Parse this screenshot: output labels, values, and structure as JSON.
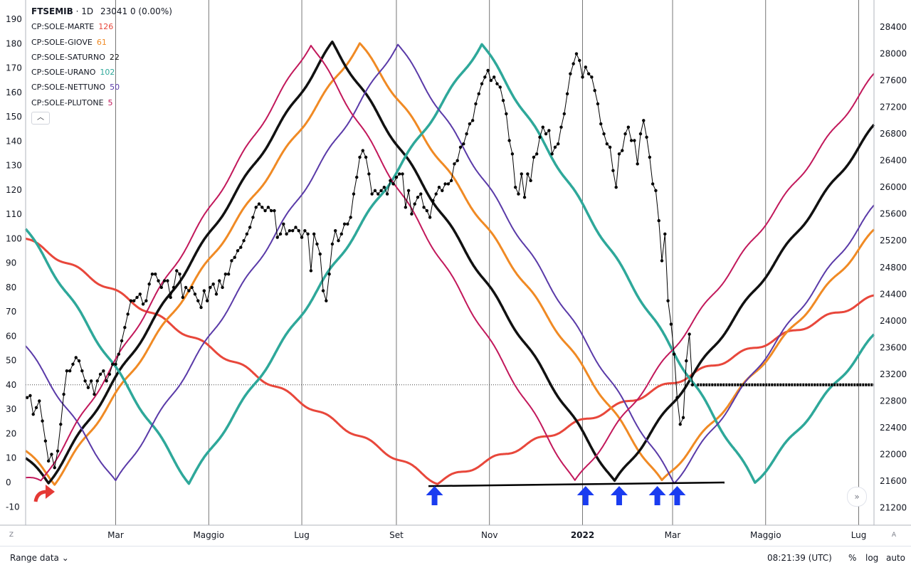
{
  "header": {
    "symbol": "FTSEMIB",
    "interval": "1D",
    "price": "23041",
    "change": "0 (0.00%)"
  },
  "legend": [
    {
      "name": "CP:SOLE-MARTE",
      "value": "126",
      "color": "#e8473b"
    },
    {
      "name": "CP:SOLE-GIOVE",
      "value": "61",
      "color": "#f08a24"
    },
    {
      "name": "CP:SOLE-SATURNO",
      "value": "22",
      "color": "#111111"
    },
    {
      "name": "CP:SOLE-URANO",
      "value": "102",
      "color": "#2ea89a"
    },
    {
      "name": "CP:SOLE-NETTUNO",
      "value": "50",
      "color": "#5a3aa8"
    },
    {
      "name": "CP:SOLE-PLUTONE",
      "value": "5",
      "color": "#c2185b"
    }
  ],
  "collapse_icon": "chevron-up-icon",
  "chart_data": {
    "type": "line",
    "left_axis": {
      "ticks": [
        190,
        180,
        170,
        160,
        150,
        140,
        130,
        120,
        110,
        100,
        90,
        80,
        70,
        60,
        50,
        40,
        30,
        20,
        10,
        0,
        -10
      ],
      "range": [
        -12,
        196
      ]
    },
    "right_axis": {
      "ticks": [
        28400,
        28000,
        27600,
        27200,
        26800,
        26400,
        26000,
        25600,
        25200,
        24800,
        24400,
        24000,
        23600,
        23200,
        22800,
        22400,
        22000,
        21600,
        21200
      ],
      "range": [
        21100,
        28600
      ]
    },
    "x_axis": {
      "labels": [
        "Mar",
        "Maggio",
        "Lug",
        "Set",
        "Nov",
        "2022",
        "Mar",
        "Maggio",
        "Lug"
      ],
      "bold_labels": [
        "2022"
      ],
      "label_days": [
        59,
        120,
        181,
        243,
        304,
        365,
        424,
        485,
        546
      ],
      "range_days": [
        0,
        556
      ],
      "gridlines": true
    },
    "hline": {
      "value": 23041,
      "style": "dotted"
    },
    "series": [
      {
        "name": "CP:SOLE-MARTE",
        "axis": "left",
        "color": "#e8473b",
        "width": 3,
        "points": [
          [
            0,
            100
          ],
          [
            270,
            0
          ],
          [
            556,
            76
          ]
        ]
      },
      {
        "name": "CP:SOLE-GIOVE",
        "axis": "left",
        "color": "#f08a24",
        "width": 3,
        "points": [
          [
            0,
            13
          ],
          [
            19,
            0
          ],
          [
            219,
            180
          ],
          [
            417,
            0
          ],
          [
            556,
            103
          ]
        ]
      },
      {
        "name": "CP:SOLE-SATURNO",
        "axis": "left",
        "color": "#111111",
        "width": 3.5,
        "points": [
          [
            0,
            10
          ],
          [
            15,
            0
          ],
          [
            201,
            180
          ],
          [
            386,
            0
          ],
          [
            556,
            146
          ]
        ]
      },
      {
        "name": "CP:SOLE-URANO",
        "axis": "left",
        "color": "#2ea89a",
        "width": 3.5,
        "points": [
          [
            0,
            104
          ],
          [
            107,
            0
          ],
          [
            299,
            180
          ],
          [
            478,
            0
          ],
          [
            556,
            60
          ]
        ]
      },
      {
        "name": "CP:SOLE-NETTUNO",
        "axis": "left",
        "color": "#5a3aa8",
        "width": 2,
        "points": [
          [
            0,
            56
          ],
          [
            59,
            0
          ],
          [
            244,
            180
          ],
          [
            425,
            0
          ],
          [
            556,
            113
          ]
        ]
      },
      {
        "name": "CP:SOLE-PLUTONE",
        "axis": "left",
        "color": "#c2185b",
        "width": 2,
        "points": [
          [
            0,
            2
          ],
          [
            10,
            0
          ],
          [
            187,
            180
          ],
          [
            360,
            0
          ],
          [
            556,
            167
          ]
        ]
      },
      {
        "name": "FTSEMIB",
        "axis": "right",
        "color": "#000000",
        "width": 1,
        "markers": true,
        "points": [
          [
            1,
            22850
          ],
          [
            3,
            22880
          ],
          [
            5,
            22600
          ],
          [
            7,
            22700
          ],
          [
            9,
            22800
          ],
          [
            11,
            22500
          ],
          [
            13,
            22200
          ],
          [
            15,
            21900
          ],
          [
            17,
            22000
          ],
          [
            19,
            21800
          ],
          [
            21,
            22050
          ],
          [
            23,
            22450
          ],
          [
            25,
            22900
          ],
          [
            27,
            23250
          ],
          [
            29,
            23250
          ],
          [
            31,
            23350
          ],
          [
            33,
            23450
          ],
          [
            35,
            23400
          ],
          [
            37,
            23250
          ],
          [
            39,
            23100
          ],
          [
            41,
            23000
          ],
          [
            43,
            23100
          ],
          [
            45,
            22900
          ],
          [
            47,
            23100
          ],
          [
            49,
            23200
          ],
          [
            51,
            23250
          ],
          [
            53,
            23100
          ],
          [
            55,
            23200
          ],
          [
            57,
            23350
          ],
          [
            59,
            23350
          ],
          [
            61,
            23500
          ],
          [
            63,
            23700
          ],
          [
            65,
            23900
          ],
          [
            67,
            24100
          ],
          [
            69,
            24300
          ],
          [
            71,
            24300
          ],
          [
            73,
            24350
          ],
          [
            75,
            24400
          ],
          [
            77,
            24250
          ],
          [
            79,
            24300
          ],
          [
            81,
            24550
          ],
          [
            83,
            24700
          ],
          [
            85,
            24700
          ],
          [
            87,
            24600
          ],
          [
            89,
            24500
          ],
          [
            91,
            24600
          ],
          [
            93,
            24600
          ],
          [
            95,
            24350
          ],
          [
            97,
            24500
          ],
          [
            99,
            24750
          ],
          [
            101,
            24700
          ],
          [
            103,
            24350
          ],
          [
            105,
            24500
          ],
          [
            107,
            24450
          ],
          [
            109,
            24500
          ],
          [
            111,
            24400
          ],
          [
            113,
            24300
          ],
          [
            115,
            24200
          ],
          [
            117,
            24450
          ],
          [
            119,
            24300
          ],
          [
            121,
            24500
          ],
          [
            123,
            24550
          ],
          [
            125,
            24400
          ],
          [
            127,
            24600
          ],
          [
            129,
            24500
          ],
          [
            131,
            24700
          ],
          [
            133,
            24700
          ],
          [
            135,
            24900
          ],
          [
            137,
            24950
          ],
          [
            139,
            25050
          ],
          [
            141,
            25100
          ],
          [
            143,
            25200
          ],
          [
            145,
            25300
          ],
          [
            147,
            25400
          ],
          [
            149,
            25550
          ],
          [
            151,
            25700
          ],
          [
            153,
            25750
          ],
          [
            155,
            25700
          ],
          [
            157,
            25650
          ],
          [
            159,
            25700
          ],
          [
            161,
            25650
          ],
          [
            163,
            25650
          ],
          [
            165,
            25250
          ],
          [
            167,
            25300
          ],
          [
            169,
            25450
          ],
          [
            171,
            25300
          ],
          [
            173,
            25350
          ],
          [
            175,
            25350
          ],
          [
            177,
            25400
          ],
          [
            179,
            25350
          ],
          [
            181,
            25250
          ],
          [
            183,
            25350
          ],
          [
            185,
            25300
          ],
          [
            187,
            24750
          ],
          [
            189,
            25300
          ],
          [
            191,
            25150
          ],
          [
            193,
            25000
          ],
          [
            195,
            24450
          ],
          [
            197,
            24300
          ],
          [
            199,
            24700
          ],
          [
            201,
            25150
          ],
          [
            203,
            25350
          ],
          [
            205,
            25200
          ],
          [
            207,
            25300
          ],
          [
            209,
            25450
          ],
          [
            211,
            25450
          ],
          [
            213,
            25550
          ],
          [
            215,
            25900
          ],
          [
            217,
            26150
          ],
          [
            219,
            26450
          ],
          [
            221,
            26550
          ],
          [
            223,
            26450
          ],
          [
            225,
            26200
          ],
          [
            227,
            25900
          ],
          [
            229,
            25950
          ],
          [
            231,
            25900
          ],
          [
            233,
            25950
          ],
          [
            235,
            26000
          ],
          [
            237,
            25900
          ],
          [
            239,
            26100
          ],
          [
            241,
            26050
          ],
          [
            243,
            26150
          ],
          [
            245,
            26200
          ],
          [
            247,
            26200
          ],
          [
            249,
            25700
          ],
          [
            251,
            25950
          ],
          [
            253,
            25600
          ],
          [
            255,
            25750
          ],
          [
            257,
            25850
          ],
          [
            259,
            25900
          ],
          [
            261,
            25700
          ],
          [
            263,
            25650
          ],
          [
            265,
            25550
          ],
          [
            267,
            25800
          ],
          [
            269,
            25900
          ],
          [
            271,
            26000
          ],
          [
            273,
            25950
          ],
          [
            275,
            26050
          ],
          [
            277,
            26050
          ],
          [
            279,
            26100
          ],
          [
            281,
            26350
          ],
          [
            283,
            26400
          ],
          [
            285,
            26600
          ],
          [
            287,
            26650
          ],
          [
            289,
            26800
          ],
          [
            291,
            26950
          ],
          [
            293,
            27000
          ],
          [
            295,
            27250
          ],
          [
            297,
            27400
          ],
          [
            299,
            27550
          ],
          [
            301,
            27650
          ],
          [
            303,
            27750
          ],
          [
            305,
            27600
          ],
          [
            307,
            27650
          ],
          [
            309,
            27550
          ],
          [
            311,
            27500
          ],
          [
            313,
            27300
          ],
          [
            315,
            27100
          ],
          [
            317,
            26700
          ],
          [
            319,
            26500
          ],
          [
            321,
            26000
          ],
          [
            323,
            25900
          ],
          [
            325,
            26200
          ],
          [
            327,
            25850
          ],
          [
            329,
            26200
          ],
          [
            331,
            26100
          ],
          [
            333,
            26450
          ],
          [
            335,
            26500
          ],
          [
            337,
            26750
          ],
          [
            339,
            26900
          ],
          [
            341,
            26800
          ],
          [
            343,
            26850
          ],
          [
            345,
            26500
          ],
          [
            347,
            26600
          ],
          [
            349,
            26650
          ],
          [
            351,
            26900
          ],
          [
            353,
            27100
          ],
          [
            355,
            27400
          ],
          [
            357,
            27700
          ],
          [
            359,
            27850
          ],
          [
            361,
            28000
          ],
          [
            363,
            27900
          ],
          [
            365,
            27650
          ],
          [
            367,
            27800
          ],
          [
            369,
            27700
          ],
          [
            371,
            27650
          ],
          [
            373,
            27450
          ],
          [
            375,
            27250
          ],
          [
            377,
            26950
          ],
          [
            379,
            26800
          ],
          [
            381,
            26650
          ],
          [
            383,
            26600
          ],
          [
            385,
            26250
          ],
          [
            387,
            26000
          ],
          [
            389,
            26500
          ],
          [
            391,
            26550
          ],
          [
            393,
            26800
          ],
          [
            395,
            26900
          ],
          [
            397,
            26700
          ],
          [
            399,
            26700
          ],
          [
            401,
            26350
          ],
          [
            403,
            26800
          ],
          [
            405,
            27000
          ],
          [
            407,
            26750
          ],
          [
            409,
            26450
          ],
          [
            411,
            26050
          ],
          [
            413,
            25950
          ],
          [
            415,
            25500
          ],
          [
            417,
            24900
          ],
          [
            419,
            25300
          ],
          [
            421,
            24300
          ],
          [
            423,
            23950
          ],
          [
            425,
            23500
          ],
          [
            427,
            22850
          ],
          [
            429,
            22450
          ],
          [
            431,
            22550
          ],
          [
            433,
            23400
          ],
          [
            435,
            23800
          ],
          [
            437,
            23041
          ]
        ]
      },
      {
        "name": "level",
        "axis": "right",
        "color": "#000000",
        "width": 4,
        "dashed": true,
        "points": [
          [
            440,
            23041
          ],
          [
            556,
            23041
          ]
        ]
      },
      {
        "name": "trendline",
        "axis": "left",
        "color": "#000000",
        "width": 2.5,
        "points": [
          [
            264,
            -1.5
          ],
          [
            458,
            0
          ]
        ]
      }
    ],
    "annotations": [
      {
        "type": "curved-arrow",
        "color": "#e53935",
        "x_day": 17,
        "y_value": -5
      },
      {
        "type": "up-arrow",
        "color": "#1a3cf0",
        "x_day": 268
      },
      {
        "type": "up-arrow",
        "color": "#1a3cf0",
        "x_day": 367
      },
      {
        "type": "up-arrow",
        "color": "#1a3cf0",
        "x_day": 389
      },
      {
        "type": "up-arrow",
        "color": "#1a3cf0",
        "x_day": 414
      },
      {
        "type": "up-arrow",
        "color": "#1a3cf0",
        "x_day": 427
      }
    ]
  },
  "bottom_bar": {
    "range_label": "Range data",
    "time": "08:21:39 (UTC)",
    "percent": "%",
    "log": "log",
    "auto": "auto"
  }
}
